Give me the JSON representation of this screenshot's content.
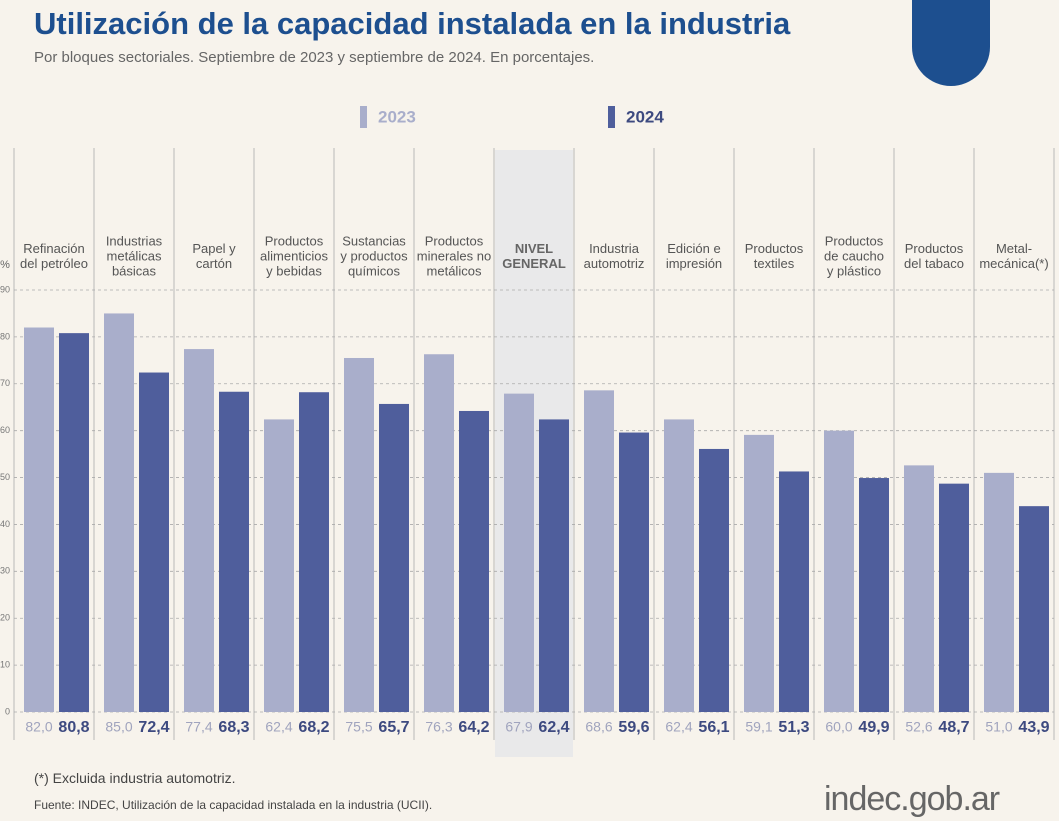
{
  "chart_data": {
    "type": "bar",
    "title": "Utilización de la capacidad instalada en la industria",
    "subtitle": "Por bloques sectoriales. Septiembre de 2023 y septiembre de 2024. En porcentajes.",
    "y_label": "%",
    "categories": [
      "Refinación\ndel petróleo",
      "Industrias\nmetálicas\nbásicas",
      "Papel y\ncartón",
      "Productos\nalimenticios\ny bebidas",
      "Sustancias\ny productos\nquímicos",
      "Productos\nminerales no\nmetálicos",
      "NIVEL\nGENERAL",
      "Industria\nautomotriz",
      "Edición e\nimpresión",
      "Productos\ntextiles",
      "Productos\nde caucho\ny plástico",
      "Productos\ndel tabaco",
      "Metal-\nmecánica(*)"
    ],
    "highlight_category": 6,
    "series": [
      {
        "name": "2023",
        "color": "#a9aecb",
        "values": [
          82.0,
          85.0,
          77.4,
          62.4,
          75.5,
          76.3,
          67.9,
          68.6,
          62.4,
          59.1,
          60.0,
          52.6,
          51.0
        ],
        "value_labels": [
          "82,0",
          "85,0",
          "77,4",
          "62,4",
          "75,5",
          "76,3",
          "67,9",
          "68,6",
          "62,4",
          "59,1",
          "60,0",
          "52,6",
          "51,0"
        ]
      },
      {
        "name": "2024",
        "color": "#4f5e9c",
        "values": [
          80.8,
          72.4,
          68.3,
          68.2,
          65.7,
          64.2,
          62.4,
          59.6,
          56.1,
          51.3,
          49.9,
          48.7,
          43.9
        ],
        "value_labels": [
          "80,8",
          "72,4",
          "68,3",
          "68,2",
          "65,7",
          "64,2",
          "62,4",
          "59,6",
          "56,1",
          "51,3",
          "49,9",
          "48,7",
          "43,9"
        ]
      }
    ],
    "ylim": [
      0,
      90
    ],
    "yticks": [
      0,
      10,
      20,
      30,
      40,
      50,
      60,
      70,
      80,
      90
    ],
    "grid": true,
    "note": "(*) Excluida industria automotriz.",
    "source": "Fuente: INDEC, Utilización de la capacidad instalada en la industria (UCII).",
    "logo": "indec.gob.ar"
  }
}
